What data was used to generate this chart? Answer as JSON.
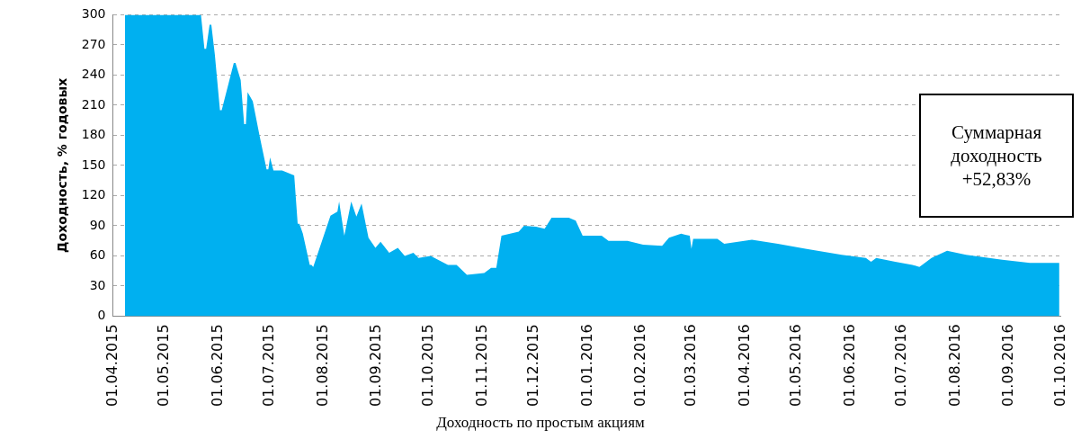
{
  "chart_data": {
    "type": "area",
    "ylabel": "Доходность, % годовых",
    "annotations": [
      "Суммарная доходность +52,83%",
      "Доходность по простым акциям"
    ],
    "x": [
      "2015-04-08",
      "2015-05-22",
      "2015-05-24",
      "2015-05-25",
      "2015-05-27",
      "2015-05-28",
      "2015-05-30",
      "2015-06-02",
      "2015-06-03",
      "2015-06-10",
      "2015-06-11",
      "2015-06-14",
      "2015-06-16",
      "2015-06-17",
      "2015-06-18",
      "2015-06-21",
      "2015-06-25",
      "2015-06-29",
      "2015-06-30",
      "2015-07-01",
      "2015-07-03",
      "2015-07-08",
      "2015-07-15",
      "2015-07-17",
      "2015-07-18",
      "2015-07-20",
      "2015-07-24",
      "2015-07-25",
      "2015-07-26",
      "2015-08-05",
      "2015-08-09",
      "2015-08-10",
      "2015-08-13",
      "2015-08-17",
      "2015-08-20",
      "2015-08-23",
      "2015-08-27",
      "2015-08-31",
      "2015-09-03",
      "2015-09-08",
      "2015-09-13",
      "2015-09-17",
      "2015-09-22",
      "2015-09-25",
      "2015-10-02",
      "2015-10-12",
      "2015-10-17",
      "2015-10-23",
      "2015-11-02",
      "2015-11-06",
      "2015-11-09",
      "2015-11-12",
      "2015-11-22",
      "2015-11-25",
      "2015-12-02",
      "2015-12-07",
      "2015-12-11",
      "2015-12-21",
      "2015-12-25",
      "2015-12-29",
      "2016-01-09",
      "2016-01-13",
      "2016-01-24",
      "2016-02-02",
      "2016-02-13",
      "2016-02-17",
      "2016-02-24",
      "2016-02-29",
      "2016-03-01",
      "2016-03-02",
      "2016-03-16",
      "2016-03-20",
      "2016-04-05",
      "2016-04-20",
      "2016-05-06",
      "2016-05-27",
      "2016-06-10",
      "2016-06-13",
      "2016-06-16",
      "2016-06-27",
      "2016-07-07",
      "2016-07-11",
      "2016-07-18",
      "2016-07-27",
      "2016-08-07",
      "2016-08-28",
      "2016-09-13",
      "2016-09-30"
    ],
    "series": [
      {
        "color": "#00b0f0",
        "values": [
          300,
          300,
          266,
          266,
          290,
          290,
          261,
          205,
          205,
          252,
          252,
          235,
          191,
          191,
          223,
          214,
          179,
          146,
          146,
          158,
          145,
          145,
          140,
          92,
          92,
          82,
          51,
          51,
          49,
          100,
          104,
          114,
          80,
          114,
          99,
          112,
          78,
          68,
          74,
          63,
          68,
          60,
          63,
          58,
          60,
          51,
          51,
          41,
          43,
          48,
          48,
          80,
          84,
          90,
          89,
          87,
          98,
          98,
          95,
          80,
          80,
          75,
          75,
          71,
          70,
          78,
          82,
          80,
          67,
          77,
          77,
          72,
          76,
          72,
          67,
          61,
          58,
          54,
          58,
          54,
          51,
          49,
          58,
          65,
          61,
          56,
          53,
          53
        ]
      }
    ],
    "xlim": [
      "2015-04-01",
      "2016-10-01"
    ],
    "xticks": [
      {
        "value": "2015-04-01",
        "label": "01.04.2015"
      },
      {
        "value": "2015-05-01",
        "label": "01.05.2015"
      },
      {
        "value": "2015-06-01",
        "label": "01.06.2015"
      },
      {
        "value": "2015-07-01",
        "label": "01.07.2015"
      },
      {
        "value": "2015-08-01",
        "label": "01.08.2015"
      },
      {
        "value": "2015-09-01",
        "label": "01.09.2015"
      },
      {
        "value": "2015-10-01",
        "label": "01.10.2015"
      },
      {
        "value": "2015-11-01",
        "label": "01.11.2015"
      },
      {
        "value": "2015-12-01",
        "label": "01.12.2015"
      },
      {
        "value": "2016-01-01",
        "label": "01.01.2016"
      },
      {
        "value": "2016-02-01",
        "label": "01.02.2016"
      },
      {
        "value": "2016-03-01",
        "label": "01.03.2016"
      },
      {
        "value": "2016-04-01",
        "label": "01.04.2016"
      },
      {
        "value": "2016-05-01",
        "label": "01.05.2016"
      },
      {
        "value": "2016-06-01",
        "label": "01.06.2016"
      },
      {
        "value": "2016-07-01",
        "label": "01.07.2016"
      },
      {
        "value": "2016-08-01",
        "label": "01.08.2016"
      },
      {
        "value": "2016-09-01",
        "label": "01.09.2016"
      },
      {
        "value": "2016-10-01",
        "label": "01.10.2016"
      }
    ],
    "ylim": [
      0,
      300
    ],
    "yticks": [
      0,
      30,
      60,
      90,
      120,
      150,
      180,
      210,
      240,
      270,
      300
    ],
    "grid": "y",
    "legend": false
  }
}
